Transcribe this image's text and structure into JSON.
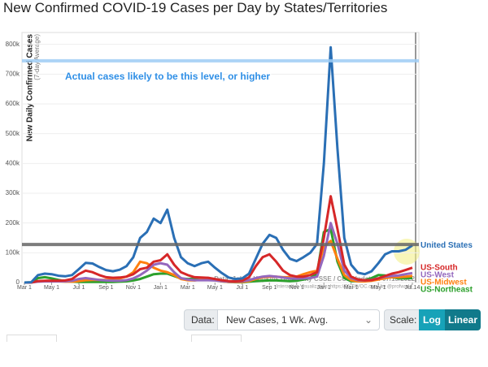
{
  "chart_data": {
    "type": "line",
    "title": "New Confirmed COVID-19 Cases per Day by States/Territories",
    "y_label": "New Daily Confirmed Cases",
    "y_sublabel": "(7-day Average)",
    "source": "Data: Johns Hopkins University CSSE / CCI; Updated: 07/15/2022",
    "credit": "Interactive Visualization: https://91-DIVOC.com/ by @profwade_",
    "categories": [
      "Mar 1",
      null,
      null,
      null,
      "May 1",
      null,
      null,
      null,
      "Jul 1",
      null,
      null,
      null,
      "Sep 1",
      null,
      null,
      null,
      "Nov 1",
      null,
      null,
      null,
      "Jan 1",
      null,
      null,
      null,
      "Mar 1",
      null,
      null,
      null,
      "May 1",
      null,
      null,
      null,
      "Jul 1",
      null,
      null,
      null,
      "Sep 1",
      null,
      null,
      null,
      "Nov 1",
      null,
      null,
      null,
      "Jan 1",
      null,
      null,
      null,
      "Mar 1",
      null,
      null,
      null,
      "May 1",
      null,
      null,
      null,
      null,
      "Jul 14"
    ],
    "series": [
      {
        "name": "United States",
        "color": "#2a6fb5",
        "values": [
          0,
          1000,
          25000,
          30000,
          28000,
          23000,
          21000,
          25000,
          45000,
          66000,
          64000,
          52000,
          42000,
          38000,
          43000,
          55000,
          85000,
          150000,
          170000,
          215000,
          200000,
          245000,
          150000,
          85000,
          65000,
          55000,
          65000,
          70000,
          50000,
          32000,
          17000,
          12000,
          14000,
          30000,
          80000,
          130000,
          160000,
          150000,
          110000,
          80000,
          72000,
          85000,
          100000,
          130000,
          400000,
          790000,
          450000,
          150000,
          60000,
          33000,
          28000,
          38000,
          65000,
          95000,
          105000,
          105000,
          110000,
          125000
        ]
      },
      {
        "name": "US-South",
        "color": "#d62728",
        "values": [
          0,
          300,
          5000,
          6000,
          6000,
          6000,
          7000,
          12000,
          28000,
          40000,
          35000,
          25000,
          18000,
          16000,
          17000,
          20000,
          28000,
          45000,
          50000,
          70000,
          75000,
          95000,
          60000,
          35000,
          25000,
          18000,
          17000,
          16000,
          12000,
          8000,
          5000,
          4000,
          6000,
          18000,
          55000,
          85000,
          95000,
          70000,
          40000,
          25000,
          20000,
          20000,
          25000,
          35000,
          150000,
          290000,
          180000,
          60000,
          20000,
          10000,
          8000,
          8000,
          14000,
          22000,
          30000,
          35000,
          42000,
          50000
        ]
      },
      {
        "name": "US-West",
        "color": "#9467bd",
        "values": [
          0,
          200,
          3000,
          4000,
          4000,
          4000,
          4000,
          6000,
          12000,
          15000,
          12000,
          9000,
          7000,
          6000,
          6000,
          8000,
          14000,
          25000,
          40000,
          60000,
          65000,
          60000,
          35000,
          15000,
          10000,
          8000,
          8000,
          8000,
          7000,
          5000,
          3000,
          3000,
          4000,
          8000,
          15000,
          20000,
          22000,
          20000,
          17000,
          14000,
          13000,
          14000,
          15000,
          20000,
          90000,
          200000,
          130000,
          40000,
          15000,
          8000,
          7000,
          9000,
          14000,
          20000,
          22000,
          24000,
          28000,
          32000
        ]
      },
      {
        "name": "US-Midwest",
        "color": "#ff7f0e",
        "values": [
          0,
          200,
          4000,
          5000,
          5000,
          4000,
          3000,
          3000,
          5000,
          8000,
          9000,
          9000,
          9000,
          10000,
          14000,
          20000,
          35000,
          70000,
          65000,
          50000,
          40000,
          35000,
          25000,
          12000,
          8000,
          7000,
          10000,
          12000,
          8000,
          4000,
          2000,
          1500,
          2000,
          5000,
          12000,
          18000,
          20000,
          20000,
          18000,
          18000,
          20000,
          28000,
          35000,
          40000,
          120000,
          140000,
          80000,
          25000,
          8000,
          4000,
          4000,
          6000,
          10000,
          15000,
          18000,
          18000,
          20000,
          22000
        ]
      },
      {
        "name": "US-Northeast",
        "color": "#2ca02c",
        "values": [
          0,
          500,
          15000,
          18000,
          14000,
          9000,
          5000,
          3000,
          2000,
          2000,
          2000,
          2000,
          2000,
          2000,
          3000,
          4000,
          7000,
          12000,
          20000,
          28000,
          30000,
          30000,
          22000,
          14000,
          12000,
          13000,
          15000,
          14000,
          9000,
          4000,
          2000,
          1000,
          1000,
          3000,
          5000,
          6000,
          7000,
          7000,
          6000,
          5000,
          6000,
          10000,
          15000,
          30000,
          170000,
          180000,
          70000,
          15000,
          5000,
          5000,
          8000,
          15000,
          25000,
          24000,
          18000,
          14000,
          14000,
          15000
        ]
      }
    ],
    "ylim": [
      0,
      840000
    ],
    "yticks": [
      {
        "value": 0,
        "label": "0"
      },
      {
        "value": 100000,
        "label": "100k"
      },
      {
        "value": 200000,
        "label": "200k"
      },
      {
        "value": 300000,
        "label": "300k"
      },
      {
        "value": 400000,
        "label": "400k"
      },
      {
        "value": 500000,
        "label": "500k"
      },
      {
        "value": 600000,
        "label": "600k"
      },
      {
        "value": 700000,
        "label": "700k"
      },
      {
        "value": 800000,
        "label": "800k"
      }
    ],
    "grid": true,
    "reference_lines": [
      {
        "value": 745000,
        "color": "#9ecdf5",
        "label": "Actual cases likely to be this level, or higher"
      },
      {
        "value": 128000,
        "color": "#666666"
      }
    ]
  },
  "controls": {
    "data_label": "Data:",
    "data_value": "New Cases, 1 Wk. Avg.",
    "scale_label": "Scale:",
    "scale_options": [
      "Log",
      "Linear"
    ]
  }
}
